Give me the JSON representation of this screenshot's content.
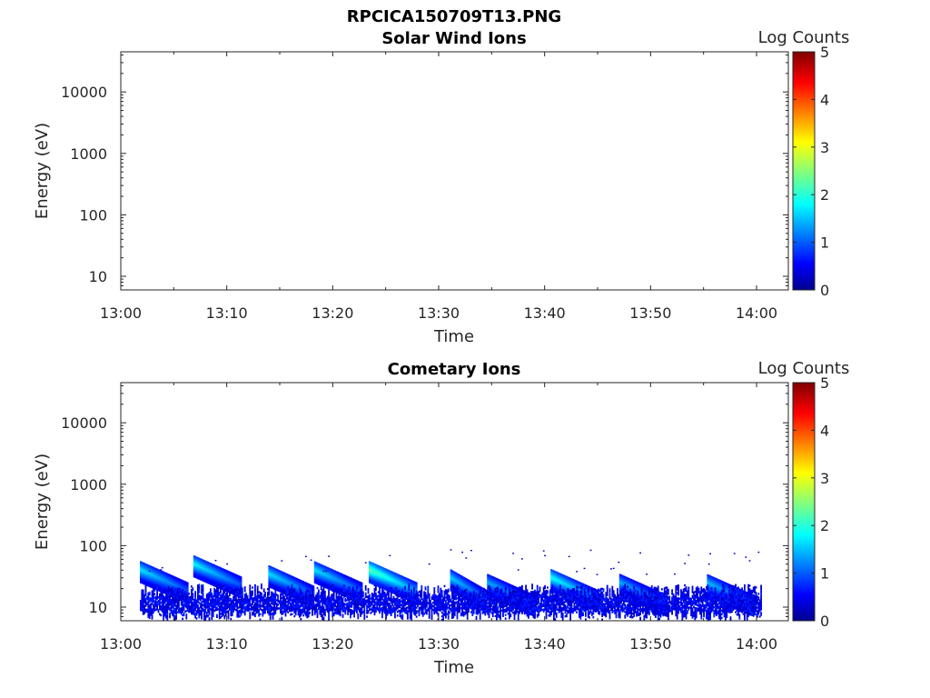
{
  "figure_title": "RPCICA150709T13.PNG",
  "chart_data": [
    {
      "type": "heatmap",
      "title": "Solar Wind Ions",
      "xlabel": "Time",
      "ylabel": "Energy (eV)",
      "x_ticks": [
        "13:00",
        "13:10",
        "13:20",
        "13:30",
        "13:40",
        "13:50",
        "14:00"
      ],
      "y_ticks": [
        "10",
        "100",
        "1000",
        "10000"
      ],
      "y_scale": "log",
      "ylim": [
        6,
        45000
      ],
      "xlim_minutes": [
        0,
        63
      ],
      "colorbar": {
        "label": "Log Counts",
        "ticks": [
          "0",
          "1",
          "2",
          "3",
          "4",
          "5"
        ],
        "range": [
          0,
          5
        ],
        "colormap": "jet"
      },
      "values": []
    },
    {
      "type": "heatmap",
      "title": "Cometary Ions",
      "xlabel": "Time",
      "ylabel": "Energy (eV)",
      "x_ticks": [
        "13:00",
        "13:10",
        "13:20",
        "13:30",
        "13:40",
        "13:50",
        "14:00"
      ],
      "y_ticks": [
        "10",
        "100",
        "1000",
        "10000"
      ],
      "y_scale": "log",
      "ylim": [
        6,
        45000
      ],
      "xlim_minutes": [
        0,
        63
      ],
      "colorbar": {
        "label": "Log Counts",
        "ticks": [
          "0",
          "1",
          "2",
          "3",
          "4",
          "5"
        ],
        "range": [
          0,
          5
        ],
        "colormap": "jet"
      },
      "data_time_range_minutes": [
        1.8,
        60.4
      ],
      "values": [
        {
          "start_minute": 1.8,
          "peak_energy_ev": 40,
          "peak_log_counts": 1.8
        },
        {
          "start_minute": 6.8,
          "peak_energy_ev": 50,
          "peak_log_counts": 1.9
        },
        {
          "start_minute": 13.8,
          "peak_energy_ev": 35,
          "peak_log_counts": 1.8
        },
        {
          "start_minute": 18.2,
          "peak_energy_ev": 40,
          "peak_log_counts": 1.8
        },
        {
          "start_minute": 23.4,
          "peak_energy_ev": 40,
          "peak_log_counts": 2.4
        },
        {
          "start_minute": 31.0,
          "peak_energy_ev": 30,
          "peak_log_counts": 1.7
        },
        {
          "start_minute": 34.5,
          "peak_energy_ev": 25,
          "peak_log_counts": 1.5
        },
        {
          "start_minute": 40.5,
          "peak_energy_ev": 30,
          "peak_log_counts": 2.0
        },
        {
          "start_minute": 47.0,
          "peak_energy_ev": 25,
          "peak_log_counts": 1.5
        },
        {
          "start_minute": 55.2,
          "peak_energy_ev": 25,
          "peak_log_counts": 1.6
        }
      ]
    }
  ]
}
